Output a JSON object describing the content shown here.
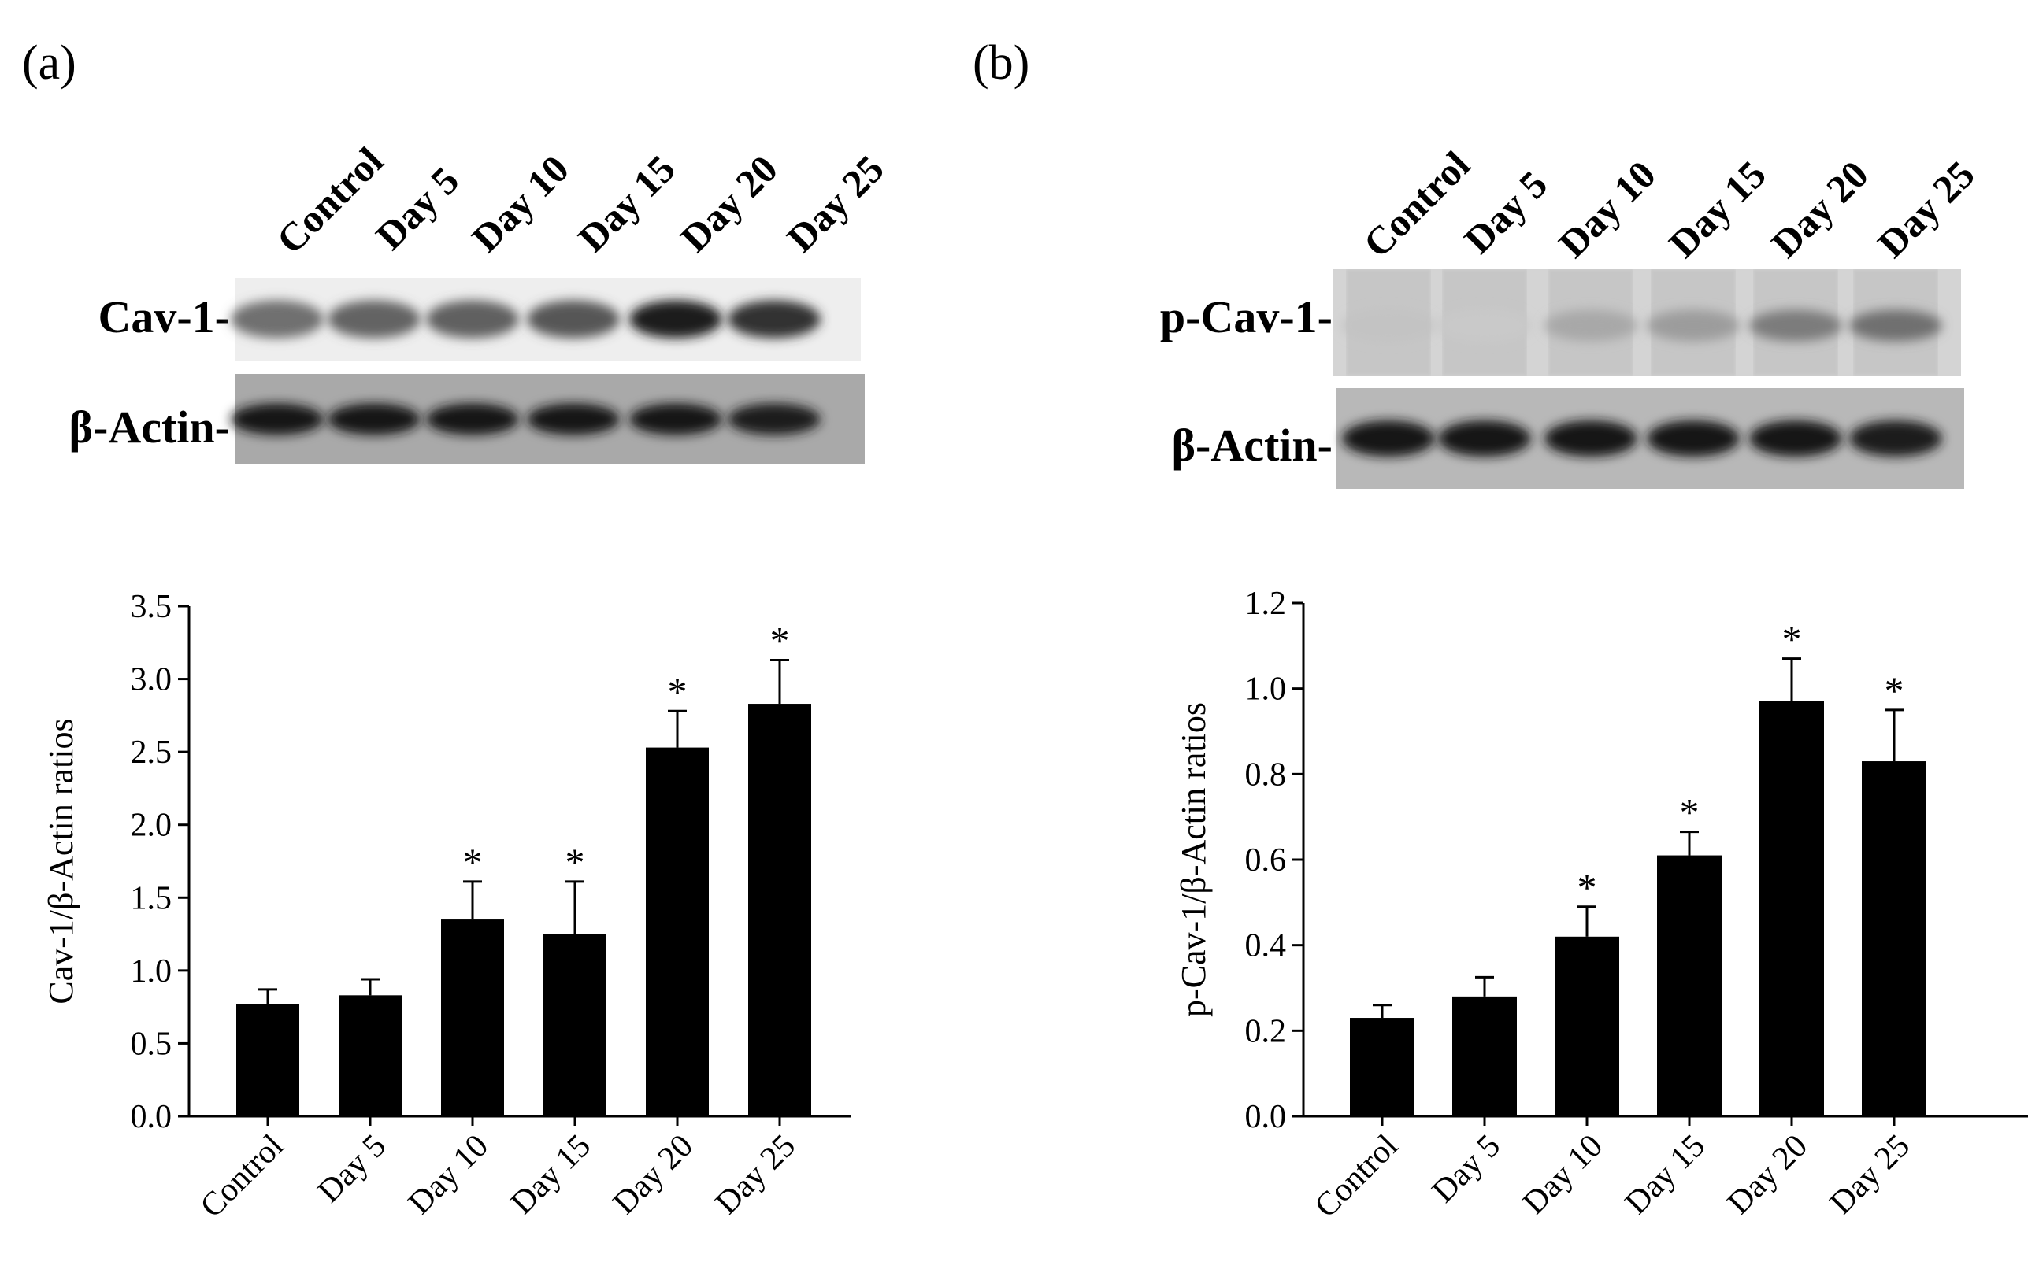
{
  "panels": [
    {
      "letter": "(a)",
      "blot": {
        "lanes": [
          "Control",
          "Day 5",
          "Day 10",
          "Day 15",
          "Day 20",
          "Day 25"
        ],
        "rows": [
          {
            "label": "Cav-1-",
            "band_intensity": [
              0.55,
              0.6,
              0.62,
              0.66,
              0.92,
              0.82
            ]
          },
          {
            "label": "β-Actin-",
            "band_intensity": [
              0.95,
              0.95,
              0.95,
              0.95,
              0.95,
              0.92
            ]
          }
        ],
        "colors": {
          "membrane_light": "#eeeeee",
          "membrane_dark": "#a9a9a9",
          "band": "#0d0d0d"
        }
      },
      "chart_data": {
        "type": "bar",
        "categories": [
          "Control",
          "Day 5",
          "Day 10",
          "Day 15",
          "Day 20",
          "Day 25"
        ],
        "values": [
          0.77,
          0.83,
          1.35,
          1.25,
          2.53,
          2.83
        ],
        "errors": [
          0.1,
          0.11,
          0.26,
          0.36,
          0.25,
          0.3
        ],
        "significant": [
          false,
          false,
          true,
          true,
          true,
          true
        ],
        "significance_marker": "*",
        "ylabel": "Cav-1/β-Actin ratios",
        "xlabel": "",
        "ylim": [
          0,
          3.5
        ],
        "yticks": [
          0.0,
          0.5,
          1.0,
          1.5,
          2.0,
          2.5,
          3.0,
          3.5
        ],
        "ytick_labels": [
          "0.0",
          "0.5",
          "1.0",
          "1.5",
          "2.0",
          "2.5",
          "3.0",
          "3.5"
        ],
        "bar_color": "#000000",
        "grid": false
      }
    },
    {
      "letter": "(b)",
      "blot": {
        "lanes": [
          "Control",
          "Day 5",
          "Day 10",
          "Day 15",
          "Day 20",
          "Day 25"
        ],
        "rows": [
          {
            "label": "p-Cav-1-",
            "band_intensity": [
              0.18,
              0.15,
              0.3,
              0.35,
              0.5,
              0.55
            ]
          },
          {
            "label": "β-Actin-",
            "band_intensity": [
              0.95,
              0.95,
              0.95,
              0.95,
              0.95,
              0.92
            ]
          }
        ],
        "colors": {
          "membrane_light": "#d4d4d4",
          "membrane_dark": "#b8b8b8",
          "band": "#0d0d0d"
        }
      },
      "chart_data": {
        "type": "bar",
        "categories": [
          "Control",
          "Day 5",
          "Day 10",
          "Day 15",
          "Day 20",
          "Day 25"
        ],
        "values": [
          0.23,
          0.28,
          0.42,
          0.61,
          0.97,
          0.83
        ],
        "errors": [
          0.03,
          0.045,
          0.07,
          0.055,
          0.1,
          0.12
        ],
        "significant": [
          false,
          false,
          true,
          true,
          true,
          true
        ],
        "significance_marker": "*",
        "ylabel": "p-Cav-1/β-Actin ratios",
        "xlabel": "",
        "ylim": [
          0,
          1.2
        ],
        "yticks": [
          0.0,
          0.2,
          0.4,
          0.6,
          0.8,
          1.0,
          1.2
        ],
        "ytick_labels": [
          "0.0",
          "0.2",
          "0.4",
          "0.6",
          "0.8",
          "1.0",
          "1.2"
        ],
        "bar_color": "#000000",
        "grid": false
      }
    }
  ]
}
